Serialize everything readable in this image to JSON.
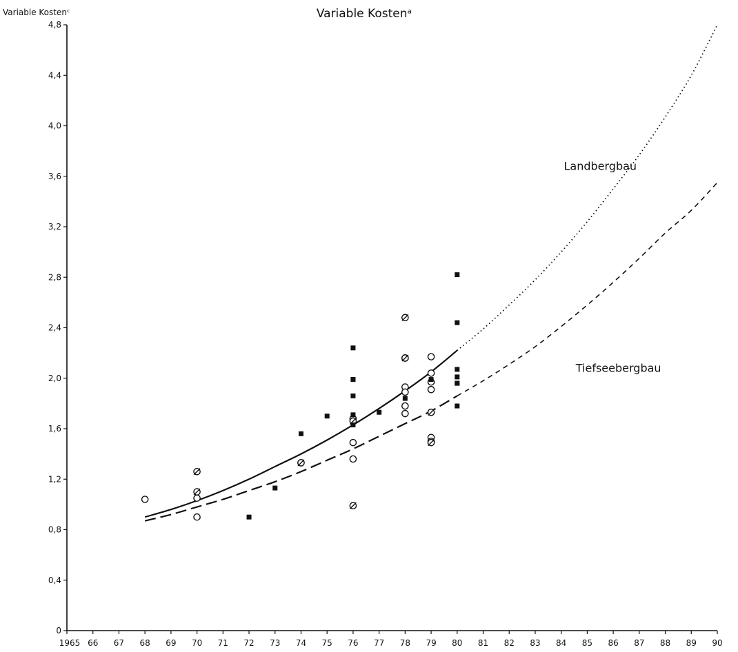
{
  "chart_data": {
    "type": "scatter",
    "title": "Variable Kostenᵃ",
    "xlabel": "",
    "ylabel": "Variable Kostenᶜ",
    "xlim": [
      1965,
      1990
    ],
    "ylim": [
      0,
      4.8
    ],
    "grid": false,
    "x_ticks": [
      1965,
      1966,
      1967,
      1968,
      1969,
      1970,
      1971,
      1972,
      1973,
      1974,
      1975,
      1976,
      1977,
      1978,
      1979,
      1980,
      1981,
      1982,
      1983,
      1984,
      1985,
      1986,
      1987,
      1988,
      1989,
      1990
    ],
    "x_tick_labels": [
      "1965",
      "66",
      "67",
      "68",
      "69",
      "70",
      "71",
      "72",
      "73",
      "74",
      "75",
      "76",
      "77",
      "78",
      "79",
      "80",
      "81",
      "82",
      "83",
      "84",
      "85",
      "86",
      "87",
      "88",
      "89",
      "90"
    ],
    "y_ticks": [
      0,
      0.4,
      0.8,
      1.2,
      1.6,
      2.0,
      2.4,
      2.8,
      3.2,
      3.6,
      4.0,
      4.4,
      4.8
    ],
    "y_tick_labels": [
      "0",
      "0,4",
      "0,8",
      "1,2",
      "1,6",
      "2,0",
      "2,4",
      "2,8",
      "3,2",
      "3,6",
      "4,0",
      "4,4",
      "4,8"
    ],
    "annotations": [
      {
        "text": "Landbergbau",
        "x": 1985.5,
        "y": 3.65
      },
      {
        "text": "Tiefseebergbau",
        "x": 1986.2,
        "y": 2.05
      }
    ],
    "curves": [
      {
        "style": "solid",
        "x": [
          1968,
          1969,
          1970,
          1971,
          1972,
          1973,
          1974,
          1975,
          1976,
          1977,
          1978,
          1979,
          1980
        ],
        "y": [
          0.9,
          0.96,
          1.03,
          1.11,
          1.2,
          1.3,
          1.4,
          1.51,
          1.63,
          1.76,
          1.9,
          2.05,
          2.22
        ]
      },
      {
        "style": "dotted",
        "x": [
          1980,
          1981,
          1982,
          1983,
          1984,
          1985,
          1986,
          1987,
          1988,
          1989,
          1990
        ],
        "y": [
          2.22,
          2.39,
          2.58,
          2.78,
          3.0,
          3.24,
          3.5,
          3.77,
          4.07,
          4.4,
          4.8
        ]
      },
      {
        "style": "longdash",
        "x": [
          1968,
          1969,
          1970,
          1971,
          1972,
          1973,
          1974,
          1975,
          1976,
          1977,
          1978,
          1979,
          1980
        ],
        "y": [
          0.87,
          0.92,
          0.98,
          1.04,
          1.11,
          1.18,
          1.26,
          1.35,
          1.44,
          1.54,
          1.64,
          1.74,
          1.86
        ]
      },
      {
        "style": "dashed",
        "x": [
          1980,
          1981,
          1982,
          1983,
          1984,
          1985,
          1986,
          1987,
          1988,
          1989,
          1990
        ],
        "y": [
          1.86,
          1.98,
          2.11,
          2.25,
          2.41,
          2.58,
          2.76,
          2.95,
          3.15,
          3.33,
          3.55
        ]
      }
    ],
    "series": [
      {
        "marker": "open-circle",
        "points": [
          [
            1968,
            1.04
          ],
          [
            1970,
            1.05
          ],
          [
            1970,
            0.9
          ],
          [
            1974,
            1.33
          ],
          [
            1976,
            1.68
          ],
          [
            1976,
            1.49
          ],
          [
            1976,
            1.36
          ],
          [
            1978,
            2.16
          ],
          [
            1978,
            2.16
          ],
          [
            1978,
            1.93
          ],
          [
            1978,
            1.89
          ],
          [
            1978,
            1.78
          ],
          [
            1978,
            1.72
          ],
          [
            1979,
            2.17
          ],
          [
            1979,
            2.04
          ],
          [
            1979,
            1.97
          ],
          [
            1979,
            1.91
          ],
          [
            1979,
            1.73
          ],
          [
            1979,
            1.53
          ],
          [
            1979,
            1.5
          ]
        ]
      },
      {
        "marker": "slashed-circle",
        "points": [
          [
            1970,
            1.26
          ],
          [
            1970,
            1.1
          ],
          [
            1974,
            1.33
          ],
          [
            1976,
            0.99
          ],
          [
            1976,
            1.66
          ],
          [
            1978,
            2.48
          ],
          [
            1978,
            2.16
          ],
          [
            1979,
            1.49
          ],
          [
            1979,
            1.73
          ]
        ]
      },
      {
        "marker": "filled-square",
        "points": [
          [
            1972,
            0.9
          ],
          [
            1973,
            1.13
          ],
          [
            1974,
            1.56
          ],
          [
            1975,
            1.7
          ],
          [
            1976,
            2.24
          ],
          [
            1976,
            1.99
          ],
          [
            1976,
            1.99
          ],
          [
            1976,
            1.86
          ],
          [
            1976,
            1.71
          ],
          [
            1976,
            1.63
          ],
          [
            1977,
            1.73
          ],
          [
            1978,
            1.84
          ],
          [
            1979,
            1.99
          ],
          [
            1980,
            2.82
          ],
          [
            1980,
            2.44
          ],
          [
            1980,
            2.07
          ],
          [
            1980,
            2.01
          ],
          [
            1980,
            1.96
          ],
          [
            1980,
            1.96
          ],
          [
            1980,
            1.78
          ]
        ]
      }
    ]
  }
}
